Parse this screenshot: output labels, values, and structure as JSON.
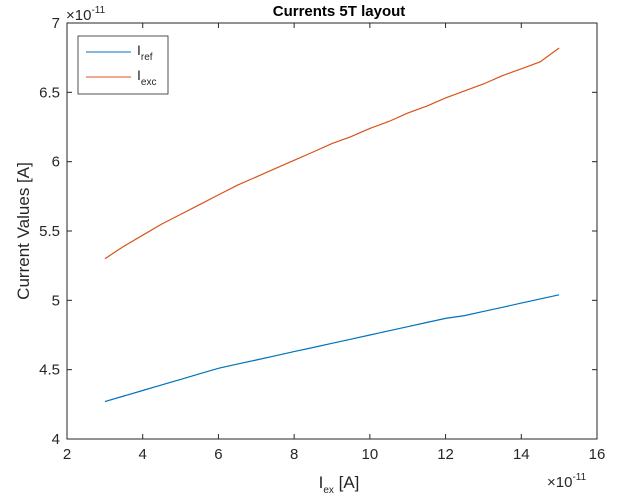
{
  "chart_data": {
    "type": "line",
    "title": "Currents 5T layout",
    "xlabel": {
      "main": "I",
      "sub": "ex",
      "rest": " [A]"
    },
    "ylabel": "Current Values [A]",
    "x_exponent": "×10",
    "x_exponent_power": "-11",
    "y_exponent": "×10",
    "y_exponent_power": "-11",
    "xlim": [
      2,
      16
    ],
    "ylim": [
      4,
      7
    ],
    "xticks": [
      2,
      4,
      6,
      8,
      10,
      12,
      14,
      16
    ],
    "yticks": [
      4,
      4.5,
      5,
      5.5,
      6,
      6.5,
      7
    ],
    "xtick_labels": [
      "2",
      "4",
      "6",
      "8",
      "10",
      "12",
      "14",
      "16"
    ],
    "ytick_labels": [
      "4",
      "4.5",
      "5",
      "5.5",
      "6",
      "6.5",
      "7"
    ],
    "grid": false,
    "legend_position": "top-left",
    "x": [
      3,
      3.5,
      4,
      4.5,
      5,
      5.5,
      6,
      6.5,
      7,
      7.5,
      8,
      8.5,
      9,
      9.5,
      10,
      10.5,
      11,
      11.5,
      12,
      12.5,
      13,
      13.5,
      14,
      14.5,
      15
    ],
    "series": [
      {
        "name_main": "I",
        "name_sub": "ref",
        "color": "#0072BD",
        "values": [
          4.27,
          4.31,
          4.35,
          4.39,
          4.43,
          4.47,
          4.51,
          4.54,
          4.57,
          4.6,
          4.63,
          4.66,
          4.69,
          4.72,
          4.75,
          4.78,
          4.81,
          4.84,
          4.87,
          4.89,
          4.92,
          4.95,
          4.98,
          5.01,
          5.04
        ]
      },
      {
        "name_main": "I",
        "name_sub": "exc",
        "color": "#D95319",
        "values": [
          5.3,
          5.39,
          5.47,
          5.55,
          5.62,
          5.69,
          5.76,
          5.83,
          5.89,
          5.95,
          6.01,
          6.07,
          6.13,
          6.18,
          6.24,
          6.29,
          6.35,
          6.4,
          6.46,
          6.51,
          6.56,
          6.62,
          6.67,
          6.72,
          6.82
        ]
      }
    ]
  }
}
